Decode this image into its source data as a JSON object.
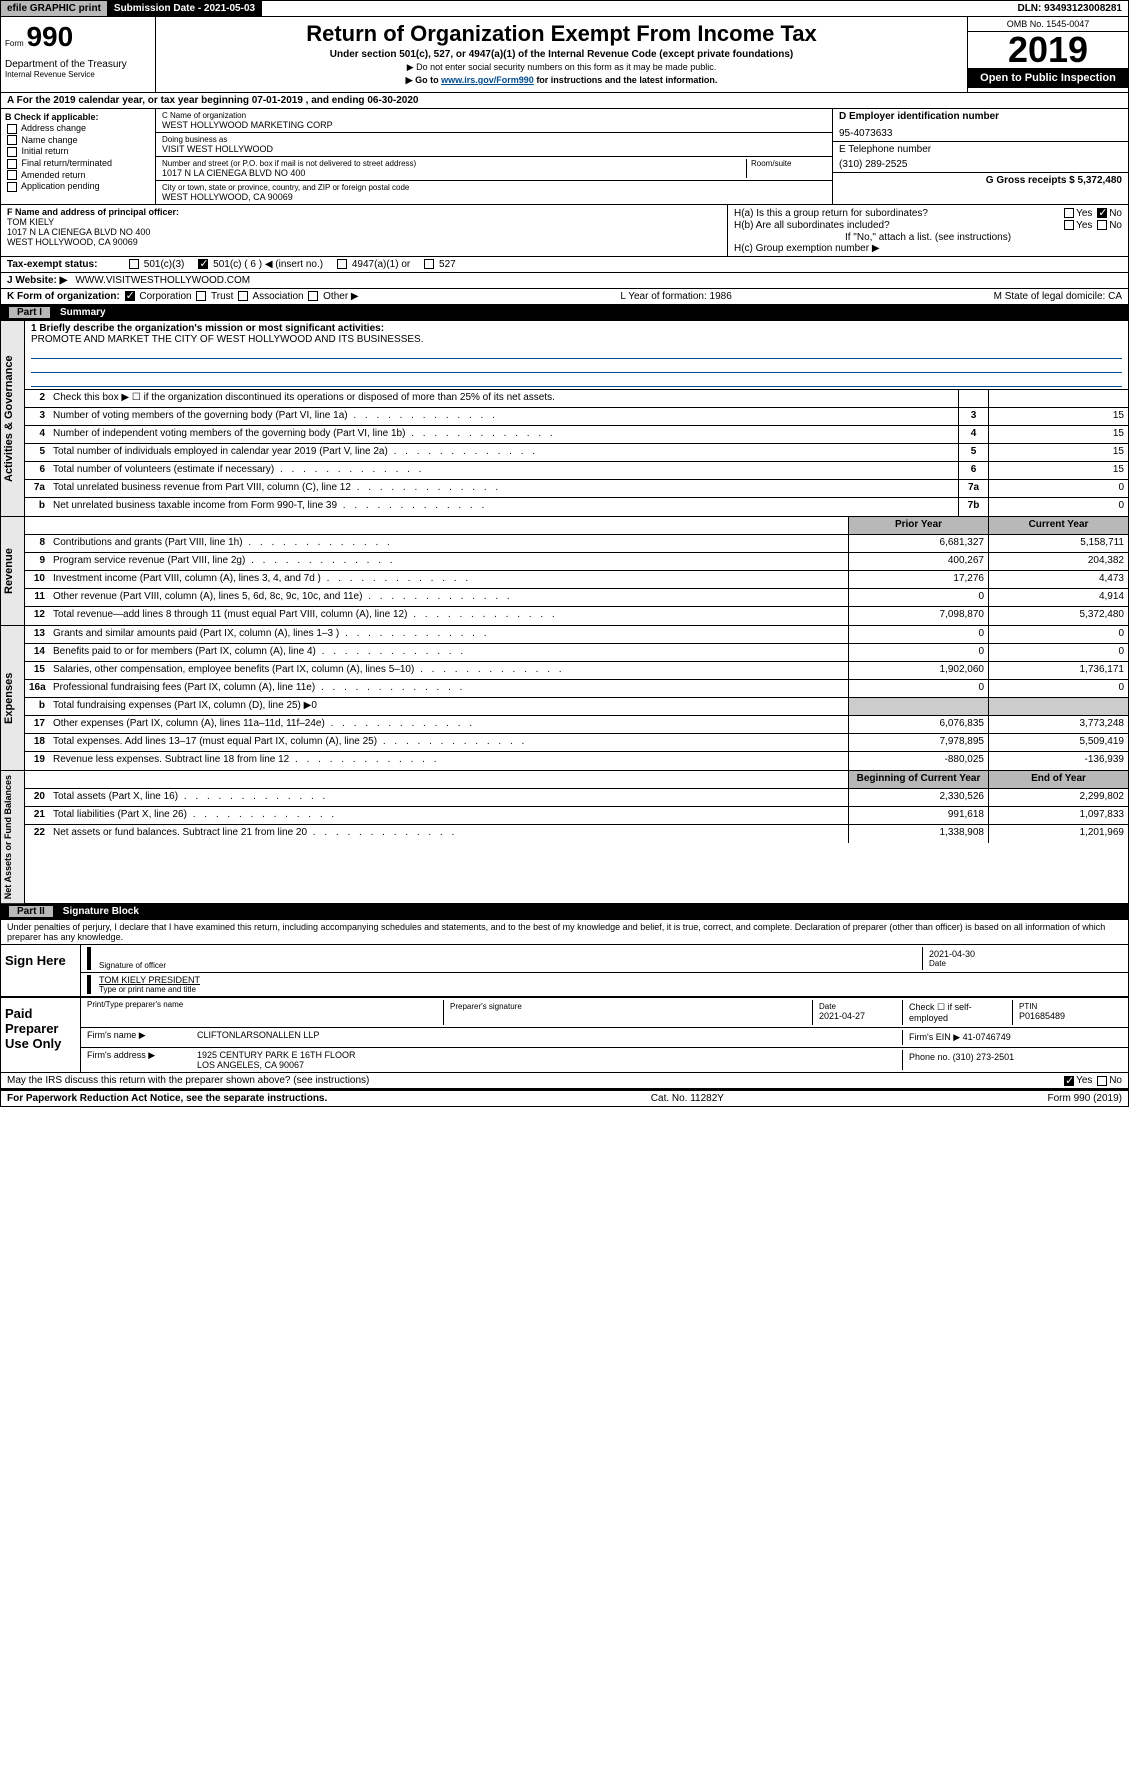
{
  "topbar": {
    "efile": "efile GRAPHIC print",
    "subdate": "Submission Date - 2021-05-03",
    "dln": "DLN: 93493123008281"
  },
  "header": {
    "form_prefix": "Form",
    "form_num": "990",
    "dept": "Department of the Treasury",
    "irs": "Internal Revenue Service",
    "title": "Return of Organization Exempt From Income Tax",
    "subtitle": "Under section 501(c), 527, or 4947(a)(1) of the Internal Revenue Code (except private foundations)",
    "notice1": "▶ Do not enter social security numbers on this form as it may be made public.",
    "notice2_pre": "▶ Go to ",
    "notice2_link": "www.irs.gov/Form990",
    "notice2_post": " for instructions and the latest information.",
    "omb": "OMB No. 1545-0047",
    "year": "2019",
    "open_pub": "Open to Public Inspection"
  },
  "row_a": "A For the 2019 calendar year, or tax year beginning 07-01-2019    , and ending 06-30-2020",
  "col_b": {
    "hdr": "B Check if applicable:",
    "items": [
      "Address change",
      "Name change",
      "Initial return",
      "Final return/terminated",
      "Amended return",
      "Application pending"
    ]
  },
  "col_c": {
    "name_lbl": "C Name of organization",
    "name": "WEST HOLLYWOOD MARKETING CORP",
    "dba_lbl": "Doing business as",
    "dba": "VISIT WEST HOLLYWOOD",
    "addr_lbl": "Number and street (or P.O. box if mail is not delivered to street address)",
    "room_lbl": "Room/suite",
    "addr": "1017 N LA CIENEGA BLVD NO 400",
    "city_lbl": "City or town, state or province, country, and ZIP or foreign postal code",
    "city": "WEST HOLLYWOOD, CA  90069"
  },
  "col_de": {
    "d_lbl": "D Employer identification number",
    "d_val": "95-4073633",
    "e_lbl": "E Telephone number",
    "e_val": "(310) 289-2525",
    "g_lbl": "G Gross receipts $ 5,372,480"
  },
  "col_f": {
    "lbl": "F Name and address of principal officer:",
    "name": "TOM KIELY",
    "addr1": "1017 N LA CIENEGA BLVD NO 400",
    "addr2": "WEST HOLLYWOOD, CA  90069"
  },
  "col_h": {
    "a_lbl": "H(a)  Is this a group return for subordinates?",
    "b_lbl": "H(b)  Are all subordinates included?",
    "b_note": "If \"No,\" attach a list. (see instructions)",
    "c_lbl": "H(c)  Group exemption number ▶"
  },
  "tax_status": {
    "lbl": "Tax-exempt status:",
    "opts": [
      "501(c)(3)",
      "501(c) ( 6 ) ◀ (insert no.)",
      "4947(a)(1) or",
      "527"
    ]
  },
  "website": {
    "lbl": "J    Website: ▶",
    "val": "WWW.VISITWESTHOLLYWOOD.COM"
  },
  "k_row": {
    "lbl": "K Form of organization:",
    "opts": [
      "Corporation",
      "Trust",
      "Association",
      "Other ▶"
    ],
    "l": "L Year of formation: 1986",
    "m": "M State of legal domicile: CA"
  },
  "part1": {
    "lbl": "Part I",
    "title": "Summary"
  },
  "mission": {
    "q": "1  Briefly describe the organization's mission or most significant activities:",
    "a": "PROMOTE AND MARKET THE CITY OF WEST HOLLYWOOD AND ITS BUSINESSES."
  },
  "gov_rows": [
    {
      "n": "2",
      "d": "Check this box ▶ ☐  if the organization discontinued its operations or disposed of more than 25% of its net assets.",
      "c": "",
      "v": ""
    },
    {
      "n": "3",
      "d": "Number of voting members of the governing body (Part VI, line 1a)",
      "c": "3",
      "v": "15"
    },
    {
      "n": "4",
      "d": "Number of independent voting members of the governing body (Part VI, line 1b)",
      "c": "4",
      "v": "15"
    },
    {
      "n": "5",
      "d": "Total number of individuals employed in calendar year 2019 (Part V, line 2a)",
      "c": "5",
      "v": "15"
    },
    {
      "n": "6",
      "d": "Total number of volunteers (estimate if necessary)",
      "c": "6",
      "v": "15"
    },
    {
      "n": "7a",
      "d": "Total unrelated business revenue from Part VIII, column (C), line 12",
      "c": "7a",
      "v": "0"
    },
    {
      "n": "b",
      "d": "Net unrelated business taxable income from Form 990-T, line 39",
      "c": "7b",
      "v": "0"
    }
  ],
  "rev_hdr": {
    "prior": "Prior Year",
    "curr": "Current Year"
  },
  "rev_rows": [
    {
      "n": "8",
      "d": "Contributions and grants (Part VIII, line 1h)",
      "p": "6,681,327",
      "c": "5,158,711"
    },
    {
      "n": "9",
      "d": "Program service revenue (Part VIII, line 2g)",
      "p": "400,267",
      "c": "204,382"
    },
    {
      "n": "10",
      "d": "Investment income (Part VIII, column (A), lines 3, 4, and 7d )",
      "p": "17,276",
      "c": "4,473"
    },
    {
      "n": "11",
      "d": "Other revenue (Part VIII, column (A), lines 5, 6d, 8c, 9c, 10c, and 11e)",
      "p": "0",
      "c": "4,914"
    },
    {
      "n": "12",
      "d": "Total revenue—add lines 8 through 11 (must equal Part VIII, column (A), line 12)",
      "p": "7,098,870",
      "c": "5,372,480"
    }
  ],
  "exp_rows": [
    {
      "n": "13",
      "d": "Grants and similar amounts paid (Part IX, column (A), lines 1–3 )",
      "p": "0",
      "c": "0"
    },
    {
      "n": "14",
      "d": "Benefits paid to or for members (Part IX, column (A), line 4)",
      "p": "0",
      "c": "0"
    },
    {
      "n": "15",
      "d": "Salaries, other compensation, employee benefits (Part IX, column (A), lines 5–10)",
      "p": "1,902,060",
      "c": "1,736,171"
    },
    {
      "n": "16a",
      "d": "Professional fundraising fees (Part IX, column (A), line 11e)",
      "p": "0",
      "c": "0"
    },
    {
      "n": "b",
      "d": "Total fundraising expenses (Part IX, column (D), line 25) ▶0",
      "p": "",
      "c": ""
    },
    {
      "n": "17",
      "d": "Other expenses (Part IX, column (A), lines 11a–11d, 11f–24e)",
      "p": "6,076,835",
      "c": "3,773,248"
    },
    {
      "n": "18",
      "d": "Total expenses. Add lines 13–17 (must equal Part IX, column (A), line 25)",
      "p": "7,978,895",
      "c": "5,509,419"
    },
    {
      "n": "19",
      "d": "Revenue less expenses. Subtract line 18 from line 12",
      "p": "-880,025",
      "c": "-136,939"
    }
  ],
  "net_hdr": {
    "prior": "Beginning of Current Year",
    "curr": "End of Year"
  },
  "net_rows": [
    {
      "n": "20",
      "d": "Total assets (Part X, line 16)",
      "p": "2,330,526",
      "c": "2,299,802"
    },
    {
      "n": "21",
      "d": "Total liabilities (Part X, line 26)",
      "p": "991,618",
      "c": "1,097,833"
    },
    {
      "n": "22",
      "d": "Net assets or fund balances. Subtract line 21 from line 20",
      "p": "1,338,908",
      "c": "1,201,969"
    }
  ],
  "side_tabs": {
    "gov": "Activities & Governance",
    "rev": "Revenue",
    "exp": "Expenses",
    "net": "Net Assets or Fund Balances"
  },
  "part2": {
    "lbl": "Part II",
    "title": "Signature Block"
  },
  "decl": "Under penalties of perjury, I declare that I have examined this return, including accompanying schedules and statements, and to the best of my knowledge and belief, it is true, correct, and complete. Declaration of preparer (other than officer) is based on all information of which preparer has any knowledge.",
  "sign": {
    "here": "Sign Here",
    "sig_lbl": "Signature of officer",
    "date1": "2021-04-30",
    "date_lbl": "Date",
    "name": "TOM KIELY PRESIDENT",
    "name_lbl": "Type or print name and title"
  },
  "paid": {
    "here": "Paid Preparer Use Only",
    "h1": "Print/Type preparer's name",
    "h2": "Preparer's signature",
    "h3": "Date",
    "date": "2021-04-27",
    "h4": "Check ☐ if self-employed",
    "h5": "PTIN",
    "ptin": "P01685489",
    "firm_lbl": "Firm's name    ▶",
    "firm": "CLIFTONLARSONALLEN LLP",
    "ein_lbl": "Firm's EIN ▶",
    "ein": "41-0746749",
    "addr_lbl": "Firm's address ▶",
    "addr1": "1925 CENTURY PARK E 16TH FLOOR",
    "addr2": "LOS ANGELES, CA  90067",
    "phone_lbl": "Phone no.",
    "phone": "(310) 273-2501"
  },
  "discuss": "May the IRS discuss this return with the preparer shown above? (see instructions)",
  "footer": {
    "pra": "For Paperwork Reduction Act Notice, see the separate instructions.",
    "cat": "Cat. No. 11282Y",
    "form": "Form 990 (2019)"
  }
}
